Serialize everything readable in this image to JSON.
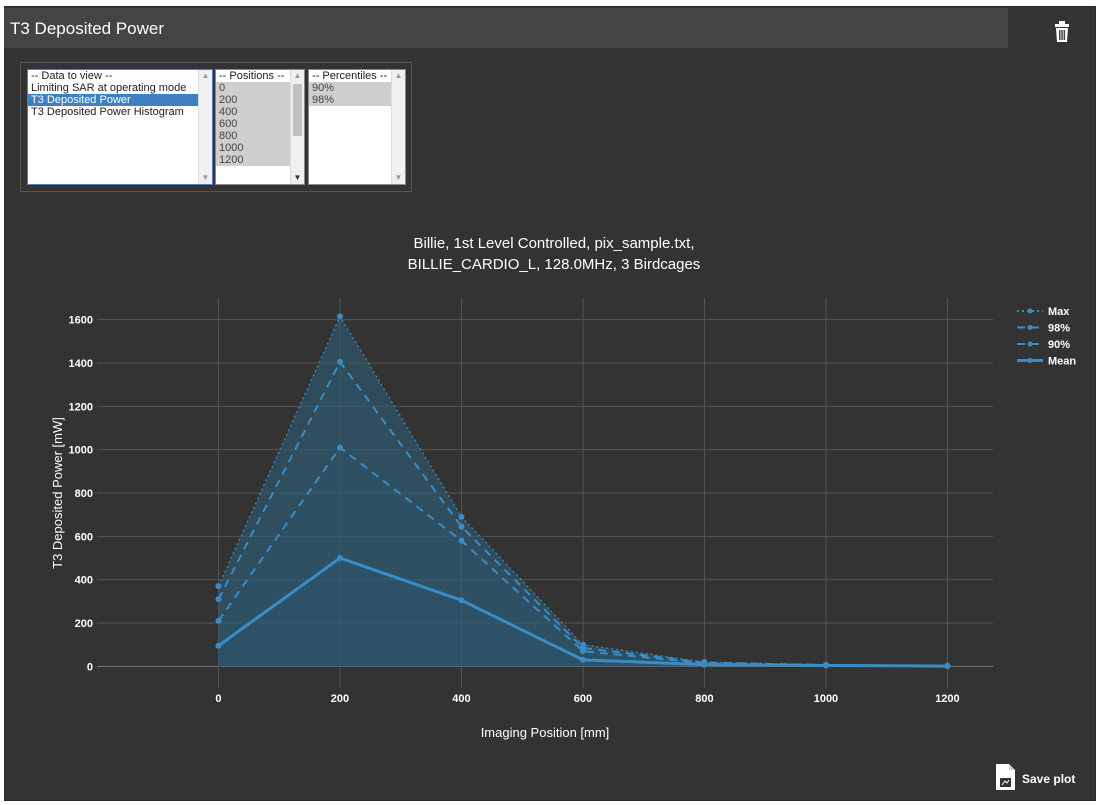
{
  "panel": {
    "title": "T3 Deposited Power"
  },
  "selectors": {
    "data_to_view": {
      "header": "-- Data to view --",
      "options": [
        "Limiting SAR at operating mode",
        "T3 Deposited Power",
        "T3 Deposited Power Histogram"
      ],
      "selected": "T3 Deposited Power"
    },
    "positions": {
      "header": "-- Positions --",
      "options": [
        "0",
        "200",
        "400",
        "600",
        "800",
        "1000",
        "1200"
      ]
    },
    "percentiles": {
      "header": "-- Percentiles --",
      "options": [
        "90%",
        "98%"
      ]
    }
  },
  "save_plot_label": "Save plot",
  "icons": {
    "trash": "trash-icon",
    "save": "save-file-icon"
  },
  "colors": {
    "panel_bg": "#333333",
    "plot_bg": "#333333",
    "series": "#3a8cc4",
    "fill": "#2d5f78",
    "grid": "#555555"
  },
  "chart_data": {
    "type": "line",
    "title_lines": [
      "Billie, 1st Level Controlled, pix_sample.txt,",
      "BILLIE_CARDIO_L, 128.0MHz, 3 Birdcages"
    ],
    "xlabel": "Imaging Position [mm]",
    "ylabel": "T3 Deposited Power [mW]",
    "x": [
      0,
      200,
      400,
      600,
      800,
      1000,
      1200
    ],
    "xticks": [
      0,
      200,
      400,
      600,
      800,
      1000,
      1200
    ],
    "yticks": [
      0,
      200,
      400,
      600,
      800,
      1000,
      1200,
      1400,
      1600
    ],
    "xlim": [
      -200,
      1275
    ],
    "ylim": [
      -100,
      1700
    ],
    "grid": true,
    "legend_position": "top-right",
    "series": [
      {
        "name": "Max",
        "values": [
          370,
          1615,
          690,
          100,
          20,
          7,
          3
        ],
        "dash": "dot"
      },
      {
        "name": "98%",
        "values": [
          310,
          1405,
          645,
          85,
          17,
          6,
          2
        ],
        "dash": "dash"
      },
      {
        "name": "90%",
        "values": [
          210,
          1010,
          580,
          70,
          14,
          5,
          2
        ],
        "dash": "dash"
      },
      {
        "name": "Mean",
        "values": [
          95,
          500,
          305,
          30,
          8,
          4,
          1
        ],
        "dash": "solid"
      }
    ]
  }
}
